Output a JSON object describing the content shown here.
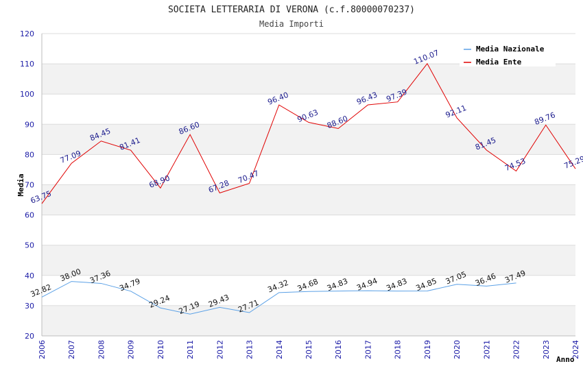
{
  "chart_data": {
    "type": "line",
    "title": "SOCIETA LETTERARIA DI VERONA (c.f.80000070237)",
    "subtitle": "Media Importi",
    "xlabel": "Anno",
    "ylabel": "Media",
    "ylim": [
      20,
      120
    ],
    "yticks": [
      20,
      30,
      40,
      50,
      60,
      70,
      80,
      90,
      100,
      110,
      120
    ],
    "x": [
      "2006",
      "2007",
      "2008",
      "2009",
      "2010",
      "2011",
      "2012",
      "2013",
      "2014",
      "2015",
      "2016",
      "2017",
      "2018",
      "2019",
      "2020",
      "2021",
      "2022",
      "2023",
      "2024"
    ],
    "legend_position": "top-right",
    "series": [
      {
        "name": "Media Nazionale",
        "color": "#5aa0e6",
        "label_color": "#111111",
        "values": [
          32.82,
          38.0,
          37.36,
          34.79,
          29.24,
          27.19,
          29.43,
          27.71,
          34.32,
          34.68,
          34.83,
          34.94,
          34.83,
          34.85,
          37.05,
          36.46,
          37.49,
          null,
          null
        ],
        "labels": [
          "32.82",
          "38.00",
          "37.36",
          "34.79",
          "29.24",
          "27.19",
          "29.43",
          "27.71",
          "34.32",
          "34.68",
          "34.83",
          "34.94",
          "34.83",
          "34.85",
          "37.05",
          "36.46",
          "37.49",
          "",
          ""
        ]
      },
      {
        "name": "Media Ente",
        "color": "#e00000",
        "label_color": "#1a1a8c",
        "values": [
          63.75,
          77.09,
          84.45,
          81.41,
          68.9,
          86.6,
          67.28,
          70.47,
          96.4,
          90.63,
          88.6,
          96.43,
          97.39,
          110.07,
          92.11,
          81.45,
          74.53,
          89.76,
          75.29
        ],
        "labels": [
          "63.75",
          "77.09",
          "84.45",
          "81.41",
          "68.90",
          "86.60",
          "67.28",
          "70.47",
          "96.40",
          "90.63",
          "88.60",
          "96.43",
          "97.39",
          "110.07",
          "92.11",
          "81.45",
          "74.53",
          "89.76",
          "75.29"
        ]
      }
    ]
  }
}
